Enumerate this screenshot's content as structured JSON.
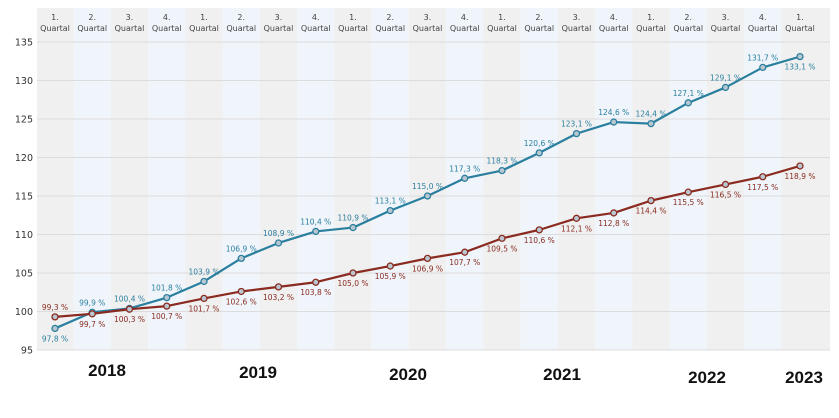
{
  "chart_data": {
    "type": "line",
    "categories": [
      [
        "1.",
        "Quartal"
      ],
      [
        "2.",
        "Quartal"
      ],
      [
        "3.",
        "Quartal"
      ],
      [
        "4.",
        "Quartal"
      ],
      [
        "1.",
        "Quartal"
      ],
      [
        "2.",
        "Quartal"
      ],
      [
        "3.",
        "Quartal"
      ],
      [
        "4.",
        "Quartal"
      ],
      [
        "1.",
        "Quartal"
      ],
      [
        "2.",
        "Quartal"
      ],
      [
        "3.",
        "Quartal"
      ],
      [
        "4.",
        "Quartal"
      ],
      [
        "1.",
        "Quartal"
      ],
      [
        "2.",
        "Quartal"
      ],
      [
        "3.",
        "Quartal"
      ],
      [
        "4.",
        "Quartal"
      ],
      [
        "1.",
        "Quartal"
      ],
      [
        "2.",
        "Quartal"
      ],
      [
        "3.",
        "Quartal"
      ],
      [
        "4.",
        "Quartal"
      ],
      [
        "1.",
        "Quartal"
      ]
    ],
    "years": [
      "2018",
      "2019",
      "2020",
      "2021",
      "2022",
      "2023"
    ],
    "ylim": [
      95,
      135
    ],
    "yticks": [
      95,
      100,
      105,
      110,
      115,
      120,
      125,
      130,
      135
    ],
    "grid": true,
    "series": [
      {
        "color": "#2a7f9f",
        "values": [
          97.8,
          99.9,
          100.4,
          101.8,
          103.9,
          106.9,
          108.9,
          110.4,
          110.9,
          113.1,
          115.0,
          117.3,
          118.3,
          120.6,
          123.1,
          124.6,
          124.4,
          127.1,
          129.1,
          131.7,
          133.1
        ],
        "labels": [
          "97,8 %",
          "99,9 %",
          "100,4 %",
          "101,8 %",
          "103,9 %",
          "106,9 %",
          "108,9 %",
          "110,4 %",
          "110,9 %",
          "113,1 %",
          "115,0 %",
          "117,3 %",
          "118,3 %",
          "120,6 %",
          "123,1 %",
          "124,6 %",
          "124,4 %",
          "127,1 %",
          "129,1 %",
          "131,7 %",
          "133,1 %"
        ]
      },
      {
        "color": "#8a2a20",
        "values": [
          99.3,
          99.7,
          100.3,
          100.7,
          101.7,
          102.6,
          103.2,
          103.8,
          105.0,
          105.9,
          106.9,
          107.7,
          109.5,
          110.6,
          112.1,
          112.8,
          114.4,
          115.5,
          116.5,
          117.5,
          118.9
        ],
        "labels": [
          "99,3 %",
          "99,7 %",
          "100,3 %",
          "100,7 %",
          "101,7 %",
          "102,6 %",
          "103,2 %",
          "103,8 %",
          "105,0 %",
          "105,9 %",
          "106,9 %",
          "107,7 %",
          "109,5 %",
          "110,6 %",
          "112,1 %",
          "112,8 %",
          "114,4 %",
          "115,5 %",
          "116,5 %",
          "117,5 %",
          "118,9 %"
        ]
      }
    ]
  }
}
